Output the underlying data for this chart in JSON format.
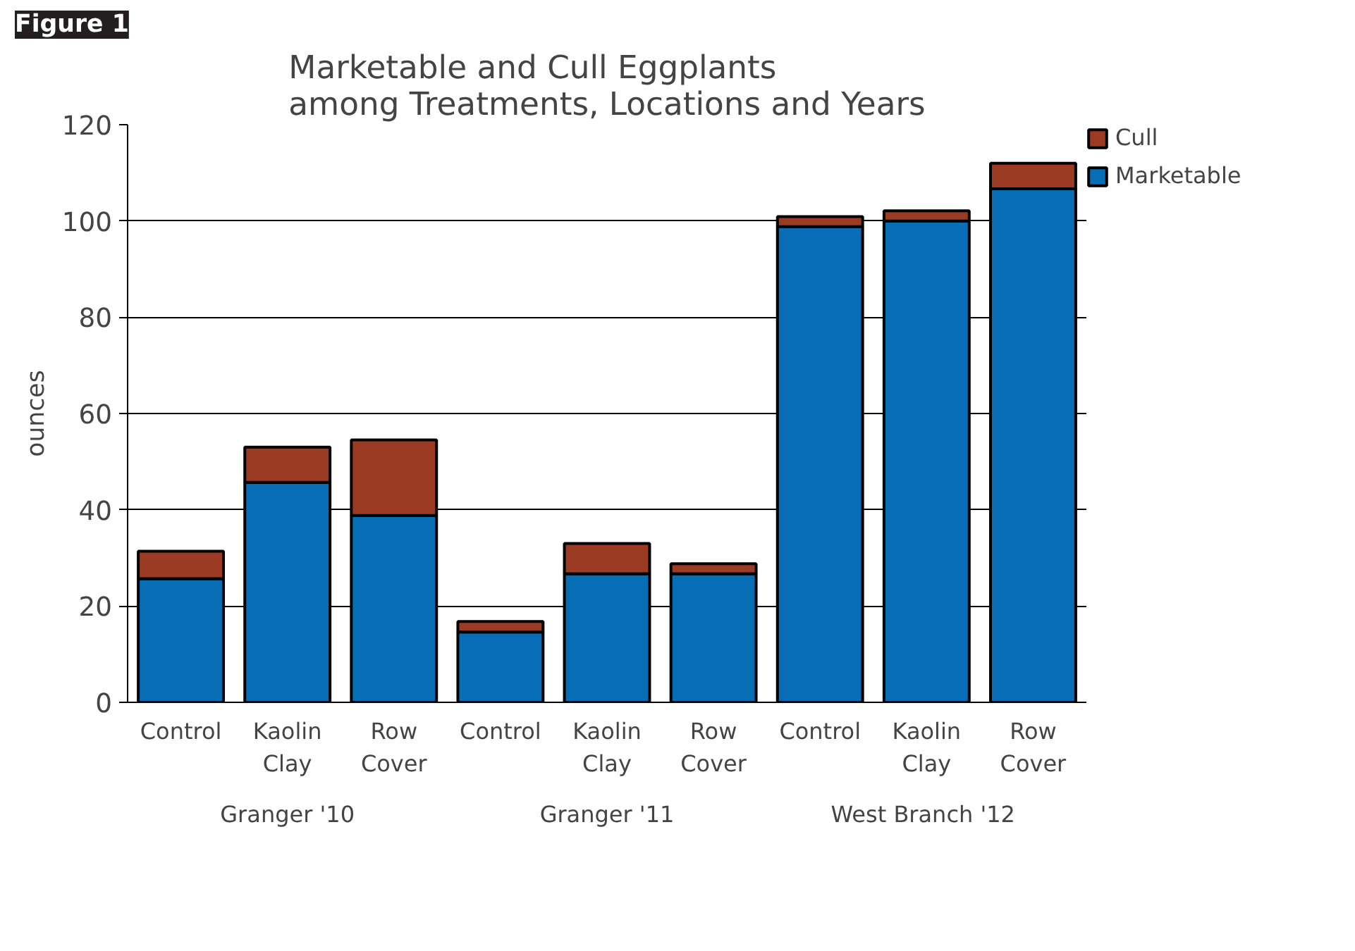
{
  "chart_data": {
    "type": "bar",
    "title": "Marketable and Cull Eggplants\namong Treatments, Locations and Years",
    "ylabel": "ounces",
    "categories": [
      "Control",
      "Kaolin Clay",
      "Row Cover",
      "Control",
      "Kaolin Clay",
      "Row Cover",
      "Control",
      "Kaolin Clay",
      "Row Cover"
    ],
    "series": [
      {
        "name": "Marketable",
        "color": "#076db5",
        "values": [
          25.7,
          45.7,
          38.8,
          14.6,
          26.7,
          26.7,
          98.8,
          100.0,
          106.7
        ]
      },
      {
        "name": "Cull",
        "color": "#9c3b23",
        "values": [
          5.7,
          7.3,
          15.7,
          2.2,
          6.3,
          2.1,
          2.1,
          2.1,
          5.3
        ]
      }
    ],
    "stacked": true,
    "ylim": [
      0,
      120
    ],
    "yticks": [
      0,
      20,
      40,
      60,
      80,
      100,
      120
    ],
    "grid": "y",
    "legend": "right",
    "annotations": [
      "Figure 1",
      "Granger '10",
      "Granger '11",
      "West Branch  '12"
    ]
  }
}
